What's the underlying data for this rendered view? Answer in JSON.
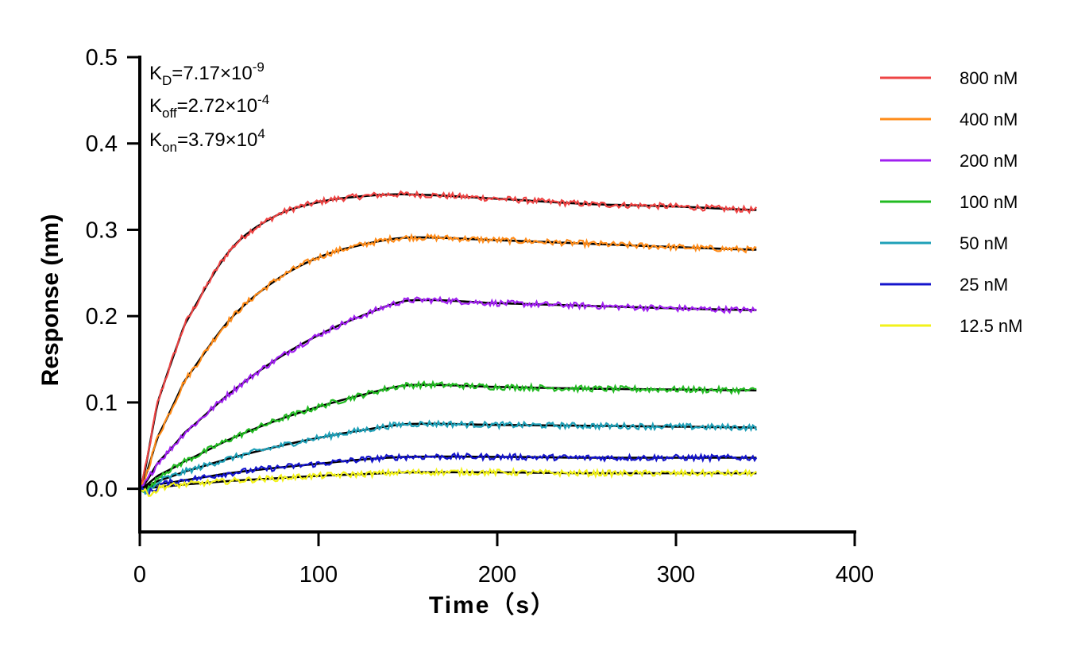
{
  "chart_data": {
    "type": "line",
    "title": "",
    "xlabel": "Time（s）",
    "ylabel": "Response (nm)",
    "xlim": [
      0,
      400
    ],
    "ylim": [
      -0.05,
      0.5
    ],
    "xticks": [
      "0",
      "100",
      "200",
      "300",
      "400"
    ],
    "yticks": [
      "0.0",
      "0.1",
      "0.2",
      "0.3",
      "0.4",
      "0.5"
    ],
    "grid": false,
    "legend_position": "right",
    "annotations": {
      "kd": {
        "main": "K",
        "sub": "D",
        "eq": "=7.17×10",
        "exp": "-9"
      },
      "koff": {
        "main": "K",
        "sub": "off",
        "eq": "=2.72×10",
        "exp": "-4"
      },
      "kon": {
        "main": "K",
        "sub": "on",
        "eq": "=3.79×10",
        "exp": "4"
      }
    },
    "fit_color": "#000000",
    "association_end": 150,
    "dissociation_end": 345,
    "series": [
      {
        "name": "800 nM",
        "color": "#EE4444",
        "x": [
          0,
          10,
          25,
          50,
          75,
          100,
          125,
          150,
          200,
          250,
          300,
          345
        ],
        "y": [
          0,
          0.1,
          0.19,
          0.275,
          0.315,
          0.332,
          0.339,
          0.341,
          0.336,
          0.33,
          0.327,
          0.323
        ]
      },
      {
        "name": "400 nM",
        "color": "#FF8C1A",
        "x": [
          0,
          10,
          25,
          50,
          75,
          100,
          125,
          150,
          200,
          250,
          300,
          345
        ],
        "y": [
          0,
          0.06,
          0.125,
          0.195,
          0.24,
          0.268,
          0.283,
          0.291,
          0.288,
          0.284,
          0.28,
          0.277
        ]
      },
      {
        "name": "200 nM",
        "color": "#A020F0",
        "x": [
          0,
          10,
          25,
          50,
          75,
          100,
          125,
          150,
          200,
          250,
          300,
          345
        ],
        "y": [
          0,
          0.03,
          0.065,
          0.11,
          0.148,
          0.178,
          0.201,
          0.218,
          0.215,
          0.212,
          0.209,
          0.207
        ]
      },
      {
        "name": "100 nM",
        "color": "#22BB22",
        "x": [
          0,
          10,
          25,
          50,
          75,
          100,
          125,
          150,
          200,
          250,
          300,
          345
        ],
        "y": [
          0,
          0.015,
          0.032,
          0.057,
          0.078,
          0.095,
          0.109,
          0.12,
          0.118,
          0.116,
          0.115,
          0.114
        ]
      },
      {
        "name": "50 nM",
        "color": "#1FA0B8",
        "x": [
          0,
          10,
          25,
          50,
          75,
          100,
          125,
          150,
          200,
          250,
          300,
          345
        ],
        "y": [
          0,
          0.009,
          0.02,
          0.035,
          0.048,
          0.059,
          0.068,
          0.075,
          0.074,
          0.073,
          0.072,
          0.071
        ]
      },
      {
        "name": "25 nM",
        "color": "#1414CC",
        "x": [
          0,
          10,
          25,
          50,
          75,
          100,
          125,
          150,
          200,
          250,
          300,
          345
        ],
        "y": [
          0,
          0.005,
          0.01,
          0.018,
          0.024,
          0.029,
          0.034,
          0.037,
          0.037,
          0.036,
          0.036,
          0.036
        ]
      },
      {
        "name": "12.5 nM",
        "color": "#F2F21A",
        "x": [
          0,
          10,
          25,
          50,
          75,
          100,
          125,
          150,
          200,
          250,
          300,
          345
        ],
        "y": [
          0,
          0.002,
          0.005,
          0.009,
          0.012,
          0.015,
          0.017,
          0.019,
          0.019,
          0.018,
          0.018,
          0.018
        ]
      }
    ]
  }
}
